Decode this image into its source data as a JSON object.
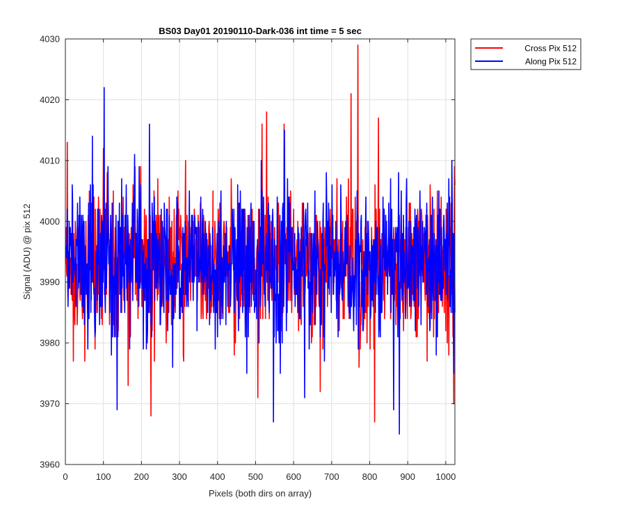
{
  "chart_data": {
    "type": "line",
    "title": "BS03 Day01 20190110-Dark-036 int time = 5 sec",
    "xlabel": "Pixels (both dirs on array)",
    "ylabel": "Signal (ADU) @ pix 512",
    "xlim": [
      0,
      1024
    ],
    "ylim": [
      3960,
      4030
    ],
    "xticks": [
      0,
      100,
      200,
      300,
      400,
      500,
      600,
      700,
      800,
      900,
      1000
    ],
    "yticks": [
      3960,
      3970,
      3980,
      3990,
      4000,
      4010,
      4020,
      4030
    ],
    "grid": true,
    "legend_position": "outside top-right",
    "series": [
      {
        "name": "Cross Pix 512",
        "color": "#ff0000",
        "mean": 3993,
        "noise_std": 6,
        "points": 1024,
        "notable_points": [
          {
            "x": 768,
            "y": 4029
          },
          {
            "x": 750,
            "y": 4021
          },
          {
            "x": 528,
            "y": 4018
          },
          {
            "x": 516,
            "y": 4016
          },
          {
            "x": 574,
            "y": 4016
          },
          {
            "x": 822,
            "y": 4017
          },
          {
            "x": 4,
            "y": 4013
          },
          {
            "x": 224,
            "y": 3968
          },
          {
            "x": 812,
            "y": 3967
          },
          {
            "x": 1020,
            "y": 3970
          },
          {
            "x": 505,
            "y": 3971
          },
          {
            "x": 669,
            "y": 3972
          },
          {
            "x": 164,
            "y": 3973
          }
        ]
      },
      {
        "name": "Along Pix 512",
        "color": "#0000ff",
        "mean": 3993,
        "noise_std": 6,
        "points": 1024,
        "notable_points": [
          {
            "x": 101,
            "y": 4022
          },
          {
            "x": 220,
            "y": 4016
          },
          {
            "x": 575,
            "y": 4015
          },
          {
            "x": 70,
            "y": 4014
          },
          {
            "x": 1015,
            "y": 4010
          },
          {
            "x": 135,
            "y": 3969
          },
          {
            "x": 546,
            "y": 3967
          },
          {
            "x": 877,
            "y": 3965
          },
          {
            "x": 862,
            "y": 3969
          },
          {
            "x": 628,
            "y": 3971
          },
          {
            "x": 1020,
            "y": 3975
          }
        ]
      }
    ]
  }
}
